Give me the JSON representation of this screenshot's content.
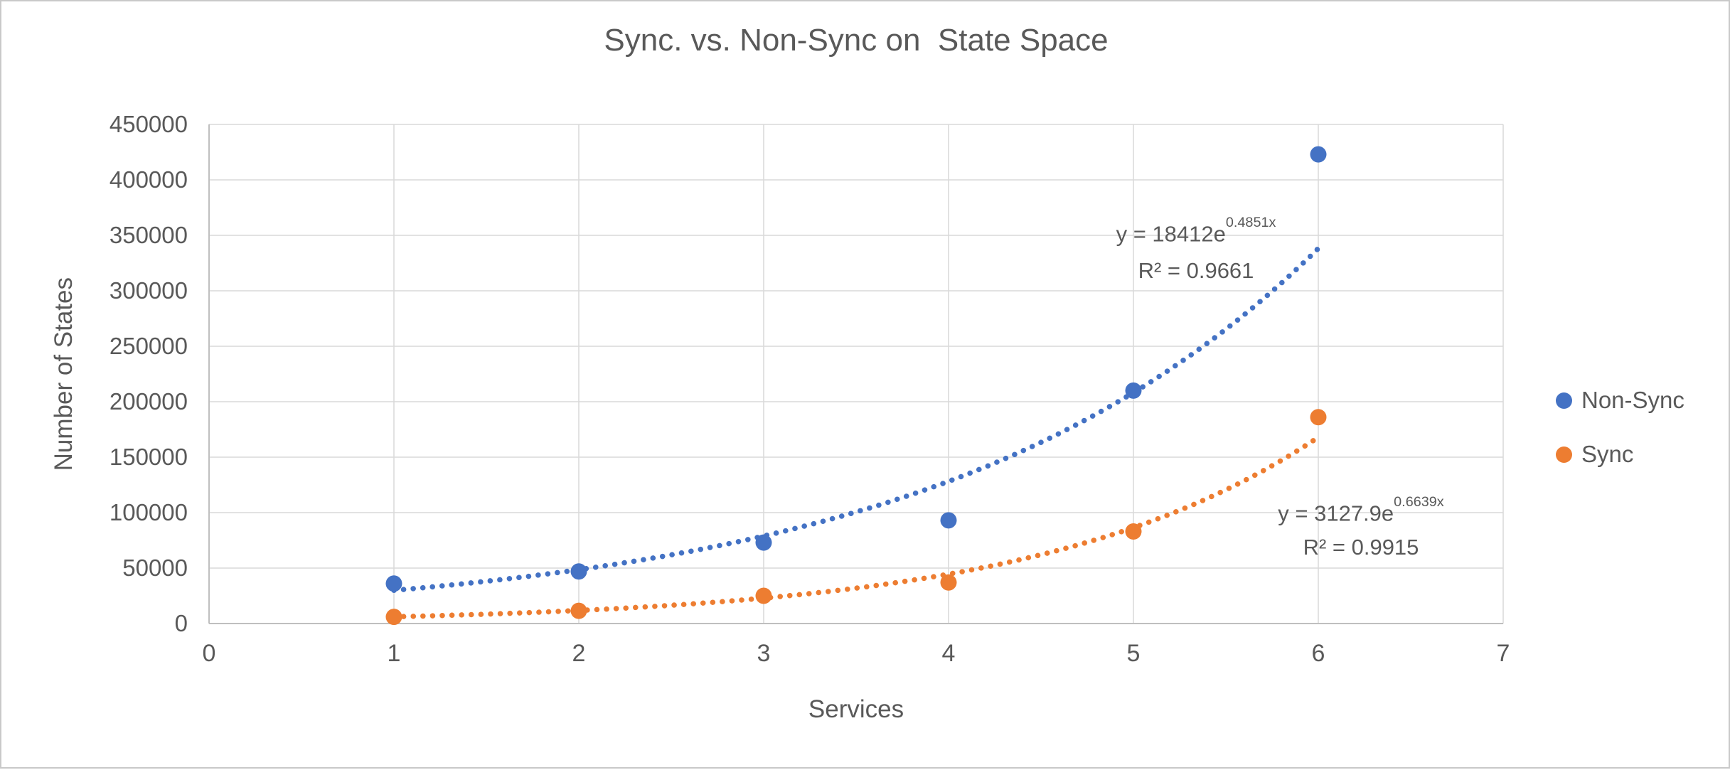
{
  "theme": {
    "text_color": "#595959",
    "grid_color": "#D9D9D9",
    "axis_color": "#BFBFBF",
    "frame_border_color": "#C9C9C9",
    "background": "#FFFFFF"
  },
  "chart_data": {
    "type": "scatter",
    "title": "Sync. vs. Non-Sync on  State Space",
    "xlabel": "Services",
    "ylabel": "Number of States",
    "xlim": [
      0,
      7
    ],
    "ylim": [
      0,
      450000
    ],
    "x_ticks": [
      0,
      1,
      2,
      3,
      4,
      5,
      6,
      7
    ],
    "y_ticks": [
      0,
      50000,
      100000,
      150000,
      200000,
      250000,
      300000,
      350000,
      400000,
      450000
    ],
    "grid": true,
    "legend_position": "right",
    "series": [
      {
        "name": "Non-Sync",
        "color": "#4472C4",
        "marker": "circle",
        "x": [
          1,
          2,
          3,
          4,
          5,
          6
        ],
        "y": [
          36000,
          47000,
          73000,
          93000,
          210000,
          423000
        ],
        "trendline": {
          "type": "exponential",
          "a": 18412,
          "b": 0.4851,
          "x_start": 1,
          "x_end": 6,
          "style": "dotted",
          "equation_base": "y = 18412e",
          "equation_exponent": "0.4851x",
          "r2_label": "R² = 0.9661"
        }
      },
      {
        "name": "Sync",
        "color": "#ED7D31",
        "marker": "circle",
        "x": [
          1,
          2,
          3,
          4,
          5,
          6
        ],
        "y": [
          6000,
          11500,
          25000,
          37000,
          83000,
          186000
        ],
        "trendline": {
          "type": "exponential",
          "a": 3127.9,
          "b": 0.6639,
          "x_start": 1,
          "x_end": 6,
          "style": "dotted",
          "equation_base": "y = 3127.9e",
          "equation_exponent": "0.6639x",
          "r2_label": "R² = 0.9915"
        }
      }
    ]
  }
}
